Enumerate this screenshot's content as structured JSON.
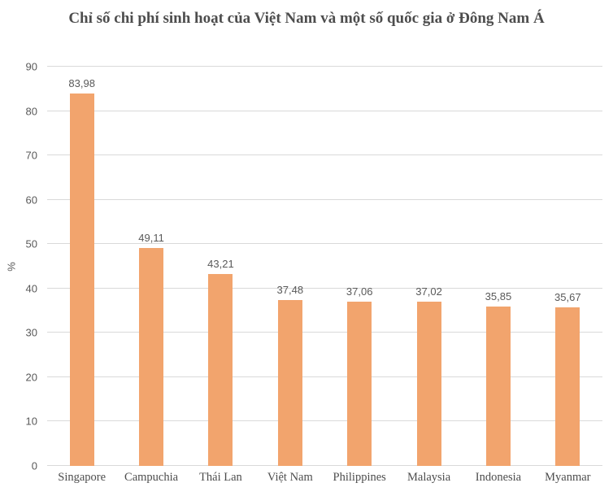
{
  "chart_data": {
    "type": "bar",
    "title": "Chỉ số chi phí sinh hoạt của Việt Nam và một số quốc gia ở Đông Nam Á",
    "categories": [
      "Singapore",
      "Campuchia",
      "Thái Lan",
      "Việt Nam",
      "Philippines",
      "Malaysia",
      "Indonesia",
      "Myanmar"
    ],
    "values": [
      83.98,
      49.11,
      43.21,
      37.48,
      37.06,
      37.02,
      35.85,
      35.67
    ],
    "value_labels": [
      "83,98",
      "49,11",
      "43,21",
      "37,48",
      "37,06",
      "37,02",
      "35,85",
      "35,67"
    ],
    "xlabel": "",
    "ylabel": "%",
    "ylim": [
      0,
      90
    ],
    "ytick_step": 10,
    "grid": true,
    "legend": "none",
    "bar_color": "#f2a46d",
    "gridline_color": "#d9d9d9",
    "text_color": "#595959",
    "title_color": "#4d4d4d"
  }
}
